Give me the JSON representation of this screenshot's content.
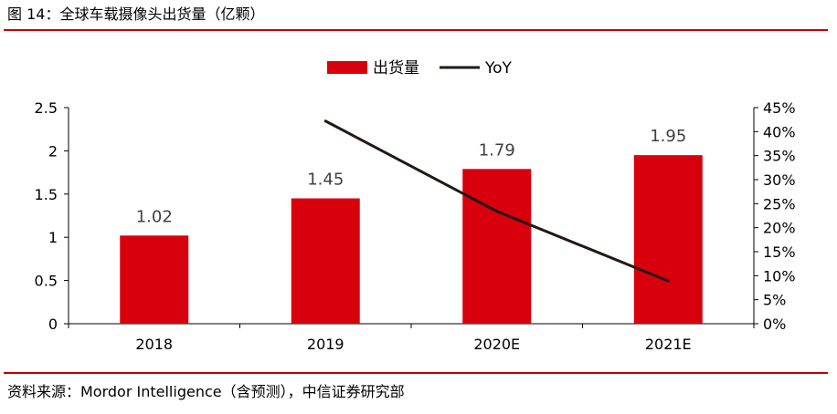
{
  "figure": {
    "title": "图 14：全球车载摄像头出货量（亿颗）",
    "source": "资料来源：Mordor Intelligence（含预测），中信证券研究部"
  },
  "colors": {
    "accent": "#c00000",
    "bar": "#d9000d",
    "line": "#231815"
  },
  "chart_data": {
    "type": "bar",
    "categories": [
      "2018",
      "2019",
      "2020E",
      "2021E"
    ],
    "series": [
      {
        "name": "出货量",
        "type": "bar",
        "axis": "left",
        "values": [
          1.02,
          1.45,
          1.79,
          1.95
        ],
        "data_labels": [
          "1.02",
          "1.45",
          "1.79",
          "1.95"
        ]
      },
      {
        "name": "YoY",
        "type": "line",
        "axis": "right",
        "values": [
          null,
          42.2,
          23.4,
          8.9
        ]
      }
    ],
    "y_left": {
      "range": [
        0,
        2.5
      ],
      "ticks": [
        "0",
        "0.5",
        "1",
        "1.5",
        "2",
        "2.5"
      ]
    },
    "y_right": {
      "range": [
        0,
        45
      ],
      "ticks": [
        "0%",
        "5%",
        "10%",
        "15%",
        "20%",
        "25%",
        "30%",
        "35%",
        "40%",
        "45%"
      ]
    },
    "legend_position": "top-center",
    "grid": false
  }
}
